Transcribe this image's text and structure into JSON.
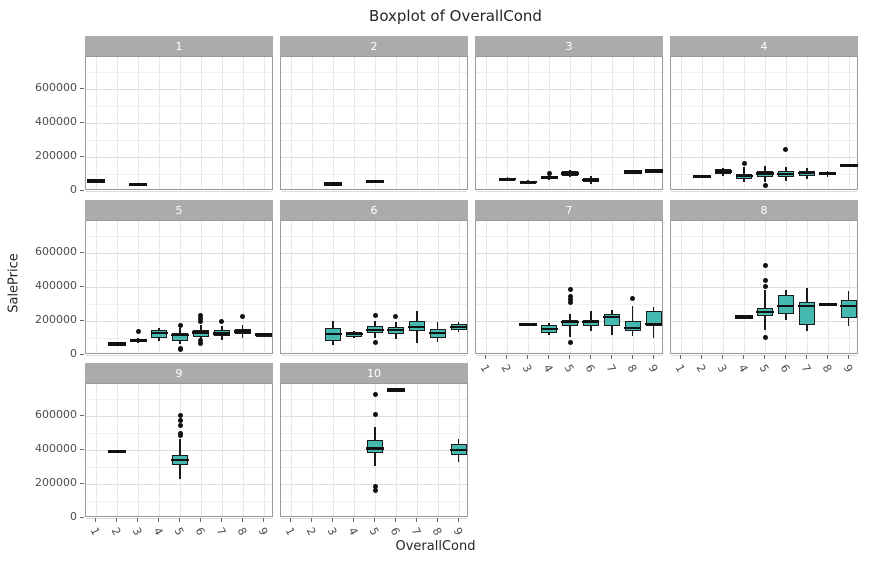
{
  "title": "Boxplot of OverallCond",
  "axes": {
    "ylabel": "SalePrice",
    "xlabel": "OverallCond"
  },
  "colors": {
    "box_fill": "#45b8b0",
    "box_stroke": "#1a1a1a",
    "strip_bg": "#ababab",
    "strip_text": "#ffffff",
    "panel_border": "#9a9a9a",
    "grid_major": "#dcdcdc",
    "grid_minor": "#f0f0f0",
    "tick_text": "#4d4d4d"
  },
  "chart_data": {
    "type": "boxplot-facets",
    "title": "Boxplot of OverallCond",
    "xlabel": "OverallCond",
    "ylabel": "SalePrice",
    "x_categories": [
      "1",
      "2",
      "3",
      "4",
      "5",
      "6",
      "7",
      "8",
      "9"
    ],
    "y_tick_labels": [
      "0",
      "200000",
      "400000",
      "600000"
    ],
    "y_ticks": [
      0,
      200000,
      400000,
      600000
    ],
    "y_minor_ticks": [
      100000,
      300000,
      500000,
      700000
    ],
    "ylim": [
      0,
      790000
    ],
    "grid": true,
    "facets": [
      {
        "label": "1",
        "row": 0,
        "col": 0,
        "boxes": [
          {
            "x": 1,
            "single": 59000
          },
          {
            "x": 3,
            "single": 38000
          }
        ]
      },
      {
        "label": "2",
        "row": 0,
        "col": 1,
        "boxes": [
          {
            "x": 3,
            "single": 41000
          },
          {
            "x": 5,
            "single": 55000
          }
        ]
      },
      {
        "label": "3",
        "row": 0,
        "col": 2,
        "boxes": [
          {
            "x": 2,
            "q1": 64000,
            "med": 70000,
            "q3": 76000,
            "lo": 60000,
            "hi": 80000
          },
          {
            "x": 3,
            "q1": 48000,
            "med": 54000,
            "q3": 60000,
            "lo": 44000,
            "hi": 64000
          },
          {
            "x": 4,
            "q1": 70000,
            "med": 80000,
            "q3": 88000,
            "lo": 62000,
            "hi": 94000,
            "outliers": [
              105000
            ]
          },
          {
            "x": 5,
            "q1": 88000,
            "med": 102000,
            "q3": 118000,
            "lo": 80000,
            "hi": 126000
          },
          {
            "x": 6,
            "q1": 52000,
            "med": 64000,
            "q3": 78000,
            "lo": 40000,
            "hi": 88000
          },
          {
            "x": 8,
            "single": 112000
          },
          {
            "x": 9,
            "single": 118000
          }
        ]
      },
      {
        "label": "4",
        "row": 0,
        "col": 3,
        "boxes": [
          {
            "x": 2,
            "single": 84000
          },
          {
            "x": 3,
            "q1": 100000,
            "med": 115000,
            "q3": 127000,
            "lo": 90000,
            "hi": 135000
          },
          {
            "x": 4,
            "q1": 70000,
            "med": 88000,
            "q3": 98000,
            "lo": 55000,
            "hi": 139000,
            "outliers": [
              160000
            ]
          },
          {
            "x": 5,
            "q1": 82000,
            "med": 104000,
            "q3": 120000,
            "lo": 55000,
            "hi": 150000,
            "outliers": [
              35000
            ]
          },
          {
            "x": 6,
            "q1": 85000,
            "med": 100000,
            "q3": 115000,
            "lo": 60000,
            "hi": 140000,
            "outliers": [
              245000
            ]
          },
          {
            "x": 7,
            "q1": 88000,
            "med": 105000,
            "q3": 118000,
            "lo": 70000,
            "hi": 135000
          },
          {
            "x": 8,
            "q1": 95000,
            "med": 102000,
            "q3": 110000,
            "lo": 85000,
            "hi": 118000
          },
          {
            "x": 9,
            "single": 150000
          }
        ]
      },
      {
        "label": "5",
        "row": 1,
        "col": 0,
        "boxes": [
          {
            "x": 2,
            "single": 65000
          },
          {
            "x": 3,
            "q1": 80000,
            "med": 87000,
            "q3": 95000,
            "lo": 72000,
            "hi": 100000,
            "outliers": [
              138000
            ]
          },
          {
            "x": 4,
            "q1": 100000,
            "med": 130000,
            "q3": 147000,
            "lo": 85000,
            "hi": 160000
          },
          {
            "x": 5,
            "q1": 85000,
            "med": 118000,
            "q3": 128000,
            "lo": 62000,
            "hi": 162000,
            "outliers": [
              176000,
              40000,
              30000
            ]
          },
          {
            "x": 6,
            "q1": 108000,
            "med": 133000,
            "q3": 150000,
            "lo": 75000,
            "hi": 175000,
            "outliers": [
              230000,
              215000,
              200000,
              88000,
              70000
            ]
          },
          {
            "x": 7,
            "q1": 110000,
            "med": 128000,
            "q3": 145000,
            "lo": 88000,
            "hi": 170000,
            "outliers": [
              200000
            ]
          },
          {
            "x": 8,
            "q1": 122000,
            "med": 138000,
            "q3": 155000,
            "lo": 100000,
            "hi": 178000,
            "outliers": [
              225000
            ]
          },
          {
            "x": 9,
            "q1": 115000,
            "med": 120000,
            "q3": 126000,
            "lo": 110000,
            "hi": 130000
          }
        ]
      },
      {
        "label": "6",
        "row": 1,
        "col": 1,
        "boxes": [
          {
            "x": 3,
            "q1": 82000,
            "med": 124000,
            "q3": 159000,
            "lo": 59000,
            "hi": 200000
          },
          {
            "x": 4,
            "q1": 106000,
            "med": 124000,
            "q3": 135000,
            "lo": 100000,
            "hi": 140000
          },
          {
            "x": 5,
            "q1": 129000,
            "med": 147000,
            "q3": 171000,
            "lo": 100000,
            "hi": 200000,
            "outliers": [
              235000,
              76000
            ]
          },
          {
            "x": 6,
            "q1": 124000,
            "med": 147000,
            "q3": 165000,
            "lo": 95000,
            "hi": 195000,
            "outliers": [
              229000
            ]
          },
          {
            "x": 7,
            "q1": 141000,
            "med": 165000,
            "q3": 200000,
            "lo": 71000,
            "hi": 259000
          },
          {
            "x": 8,
            "q1": 100000,
            "med": 129000,
            "q3": 153000,
            "lo": 75000,
            "hi": 194000
          },
          {
            "x": 9,
            "q1": 147000,
            "med": 165000,
            "q3": 182000,
            "lo": 135000,
            "hi": 195000
          }
        ]
      },
      {
        "label": "7",
        "row": 1,
        "col": 2,
        "boxes": [
          {
            "x": 3,
            "single": 182000
          },
          {
            "x": 4,
            "q1": 129000,
            "med": 153000,
            "q3": 176000,
            "lo": 115000,
            "hi": 190000
          },
          {
            "x": 5,
            "q1": 171000,
            "med": 194000,
            "q3": 206000,
            "lo": 106000,
            "hi": 240000,
            "outliers": [
              385000,
              345000,
              330000,
              310000,
              76000
            ]
          },
          {
            "x": 6,
            "q1": 171000,
            "med": 194000,
            "q3": 206000,
            "lo": 140000,
            "hi": 259000
          },
          {
            "x": 7,
            "q1": 171000,
            "med": 224000,
            "q3": 241000,
            "lo": 118000,
            "hi": 265000
          },
          {
            "x": 8,
            "q1": 141000,
            "med": 159000,
            "q3": 200000,
            "lo": 110000,
            "hi": 288000,
            "outliers": [
              335000
            ]
          },
          {
            "x": 9,
            "q1": 171000,
            "med": 182000,
            "q3": 259000,
            "lo": 100000,
            "hi": 282000
          }
        ]
      },
      {
        "label": "8",
        "row": 1,
        "col": 3,
        "boxes": [
          {
            "x": 4,
            "single": 224000
          },
          {
            "x": 5,
            "q1": 229000,
            "med": 253000,
            "q3": 276000,
            "lo": 150000,
            "hi": 382000,
            "outliers": [
              529000,
              441000,
              406000,
              106000
            ]
          },
          {
            "x": 6,
            "q1": 241000,
            "med": 288000,
            "q3": 353000,
            "lo": 206000,
            "hi": 382000
          },
          {
            "x": 7,
            "q1": 176000,
            "med": 288000,
            "q3": 312000,
            "lo": 141000,
            "hi": 394000
          },
          {
            "x": 8,
            "single": 300000
          },
          {
            "x": 9,
            "q1": 218000,
            "med": 288000,
            "q3": 324000,
            "lo": 171000,
            "hi": 376000
          }
        ]
      },
      {
        "label": "9",
        "row": 2,
        "col": 0,
        "boxes": [
          {
            "x": 2,
            "single": 394000
          },
          {
            "x": 5,
            "q1": 314000,
            "med": 343000,
            "q3": 371000,
            "lo": 229000,
            "hi": 463000,
            "outliers": [
              605000,
              575000,
              545000,
              500000,
              485000
            ]
          }
        ]
      },
      {
        "label": "10",
        "row": 2,
        "col": 1,
        "boxes": [
          {
            "x": 5,
            "q1": 383000,
            "med": 411000,
            "q3": 457000,
            "lo": 309000,
            "hi": 537000,
            "outliers": [
              731000,
              611000,
              185000,
              160000
            ]
          },
          {
            "x": 6,
            "single": 755000
          },
          {
            "x": 9,
            "q1": 374000,
            "med": 400000,
            "q3": 438000,
            "lo": 328000,
            "hi": 465000
          }
        ]
      }
    ]
  }
}
